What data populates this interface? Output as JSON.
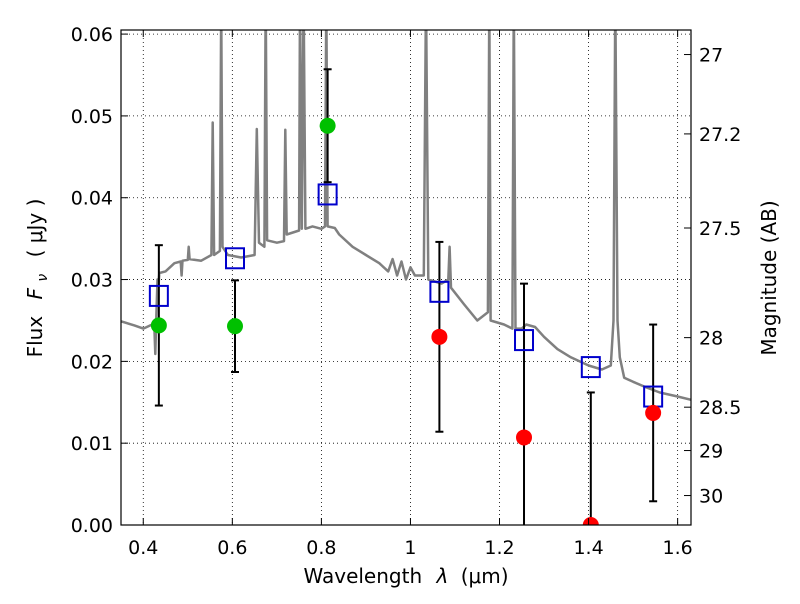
{
  "chart_data": {
    "type": "scatter",
    "xlabel_text": "Wavelength",
    "xlabel_symbol": "λ",
    "xlabel_unit": "(μm)",
    "ylabel_text": "Flux",
    "ylabel_symbol": "F",
    "ylabel_subscript": "ν",
    "ylabel_unit": "( μJy )",
    "y2label": "Magnitude (AB)",
    "xlim": [
      0.35,
      1.63
    ],
    "ylim": [
      0.0,
      0.0605
    ],
    "grid": true,
    "x_ticks": [
      {
        "value": 0.4,
        "label": "0.4"
      },
      {
        "value": 0.6,
        "label": "0.6"
      },
      {
        "value": 0.8,
        "label": "0.8"
      },
      {
        "value": 1.0,
        "label": "1"
      },
      {
        "value": 1.2,
        "label": "1.2"
      },
      {
        "value": 1.4,
        "label": "1.4"
      },
      {
        "value": 1.6,
        "label": "1.6"
      }
    ],
    "y_ticks": [
      {
        "value": 0.0,
        "label": "0.00"
      },
      {
        "value": 0.01,
        "label": "0.01"
      },
      {
        "value": 0.02,
        "label": "0.02"
      },
      {
        "value": 0.03,
        "label": "0.03"
      },
      {
        "value": 0.04,
        "label": "0.04"
      },
      {
        "value": 0.05,
        "label": "0.05"
      },
      {
        "value": 0.06,
        "label": "0.06"
      }
    ],
    "y2_ticks": [
      {
        "flux": 0.0575,
        "label": "27"
      },
      {
        "flux": 0.0478,
        "label": "27.2"
      },
      {
        "flux": 0.0363,
        "label": "27.5"
      },
      {
        "flux": 0.0229,
        "label": "28"
      },
      {
        "flux": 0.0144,
        "label": "28.5"
      },
      {
        "flux": 0.0091,
        "label": "29"
      },
      {
        "flux": 0.0036,
        "label": "30"
      }
    ],
    "colors": {
      "model": "#808080",
      "detection": "#00c000",
      "non_detection": "#ff0000",
      "model_photometry": "#0000cc",
      "errorbar": "#000000"
    },
    "observed": [
      {
        "x": 0.435,
        "y": 0.0244,
        "err": 0.0098,
        "detected": true
      },
      {
        "x": 0.606,
        "y": 0.0243,
        "err": 0.0056,
        "detected": true
      },
      {
        "x": 0.814,
        "y": 0.0488,
        "err": 0.0069,
        "detected": true
      },
      {
        "x": 1.065,
        "y": 0.023,
        "err": 0.0116,
        "detected": false
      },
      {
        "x": 1.255,
        "y": 0.0107,
        "err": 0.0188,
        "detected": false
      },
      {
        "x": 1.405,
        "y": 0.0,
        "err": 0.0162,
        "detected": false
      },
      {
        "x": 1.545,
        "y": 0.0137,
        "err": 0.0108,
        "detected": false
      }
    ],
    "model_photometry": [
      {
        "x": 0.435,
        "y": 0.028
      },
      {
        "x": 0.606,
        "y": 0.0326
      },
      {
        "x": 0.814,
        "y": 0.0404
      },
      {
        "x": 1.065,
        "y": 0.0285
      },
      {
        "x": 1.255,
        "y": 0.0226
      },
      {
        "x": 1.405,
        "y": 0.0193
      },
      {
        "x": 1.545,
        "y": 0.0157
      }
    ],
    "model_spectrum": [
      [
        0.35,
        0.0249
      ],
      [
        0.38,
        0.0244
      ],
      [
        0.4,
        0.024
      ],
      [
        0.42,
        0.0245
      ],
      [
        0.425,
        0.024
      ],
      [
        0.427,
        0.0209
      ],
      [
        0.429,
        0.025
      ],
      [
        0.432,
        0.03
      ],
      [
        0.434,
        0.029
      ],
      [
        0.436,
        0.0308
      ],
      [
        0.45,
        0.031
      ],
      [
        0.47,
        0.032
      ],
      [
        0.484,
        0.0322
      ],
      [
        0.486,
        0.0305
      ],
      [
        0.488,
        0.0323
      ],
      [
        0.5,
        0.0324
      ],
      [
        0.502,
        0.034
      ],
      [
        0.504,
        0.0325
      ],
      [
        0.53,
        0.0323
      ],
      [
        0.553,
        0.033
      ],
      [
        0.556,
        0.0492
      ],
      [
        0.559,
        0.033
      ],
      [
        0.572,
        0.0335
      ],
      [
        0.575,
        0.064
      ],
      [
        0.578,
        0.034
      ],
      [
        0.59,
        0.033
      ],
      [
        0.62,
        0.0327
      ],
      [
        0.65,
        0.033
      ],
      [
        0.655,
        0.0484
      ],
      [
        0.66,
        0.0345
      ],
      [
        0.672,
        0.034
      ],
      [
        0.675,
        0.065
      ],
      [
        0.678,
        0.0348
      ],
      [
        0.7,
        0.0345
      ],
      [
        0.716,
        0.0347
      ],
      [
        0.719,
        0.0483
      ],
      [
        0.722,
        0.0355
      ],
      [
        0.75,
        0.036
      ],
      [
        0.752,
        0.065
      ],
      [
        0.756,
        0.0362
      ],
      [
        0.76,
        0.065
      ],
      [
        0.764,
        0.0362
      ],
      [
        0.78,
        0.0365
      ],
      [
        0.8,
        0.0362
      ],
      [
        0.808,
        0.0365
      ],
      [
        0.811,
        0.065
      ],
      [
        0.814,
        0.0365
      ],
      [
        0.83,
        0.0363
      ],
      [
        0.84,
        0.0355
      ],
      [
        0.87,
        0.034
      ],
      [
        0.9,
        0.033
      ],
      [
        0.93,
        0.032
      ],
      [
        0.95,
        0.031
      ],
      [
        0.96,
        0.0325
      ],
      [
        0.97,
        0.0305
      ],
      [
        0.98,
        0.0322
      ],
      [
        0.99,
        0.03
      ],
      [
        1.0,
        0.0315
      ],
      [
        1.01,
        0.0305
      ],
      [
        1.03,
        0.0305
      ],
      [
        1.035,
        0.065
      ],
      [
        1.04,
        0.03
      ],
      [
        1.07,
        0.0295
      ],
      [
        1.085,
        0.03
      ],
      [
        1.088,
        0.034
      ],
      [
        1.091,
        0.029
      ],
      [
        1.12,
        0.027
      ],
      [
        1.15,
        0.025
      ],
      [
        1.174,
        0.026
      ],
      [
        1.177,
        0.065
      ],
      [
        1.18,
        0.025
      ],
      [
        1.21,
        0.0245
      ],
      [
        1.229,
        0.024
      ],
      [
        1.232,
        0.065
      ],
      [
        1.236,
        0.024
      ],
      [
        1.25,
        0.024
      ],
      [
        1.26,
        0.0245
      ],
      [
        1.28,
        0.0242
      ],
      [
        1.3,
        0.023
      ],
      [
        1.33,
        0.0215
      ],
      [
        1.36,
        0.0205
      ],
      [
        1.4,
        0.0195
      ],
      [
        1.43,
        0.019
      ],
      [
        1.45,
        0.0195
      ],
      [
        1.456,
        0.025
      ],
      [
        1.46,
        0.065
      ],
      [
        1.465,
        0.025
      ],
      [
        1.47,
        0.0205
      ],
      [
        1.48,
        0.018
      ],
      [
        1.5,
        0.0175
      ],
      [
        1.53,
        0.0168
      ],
      [
        1.56,
        0.0162
      ],
      [
        1.6,
        0.0157
      ],
      [
        1.63,
        0.0153
      ]
    ]
  }
}
